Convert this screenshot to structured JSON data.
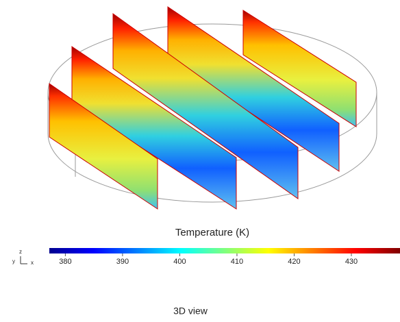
{
  "figure": {
    "triad": {
      "x": "x",
      "y": "y",
      "z": "z"
    },
    "colorbar": {
      "title": "Temperature (K)",
      "range": [
        377.2,
        438.5
      ],
      "ticks": [
        380,
        390,
        400,
        410,
        420,
        430
      ]
    },
    "caption": "3D view"
  }
}
